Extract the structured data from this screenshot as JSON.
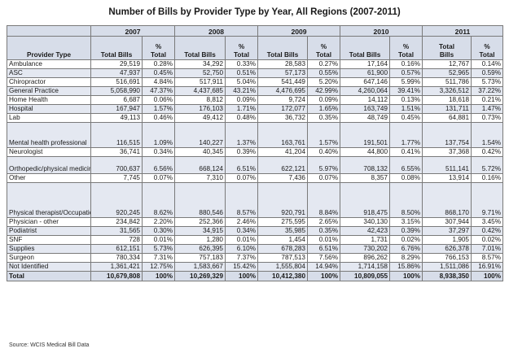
{
  "title": "Number of Bills by Provider Type by Year, All Regions (2007-2011)",
  "years": [
    "2007",
    "2008",
    "2009",
    "2010",
    "2011"
  ],
  "headers": {
    "provider_type": "Provider Type",
    "bills": [
      "Total Bills",
      "Total Bills",
      "Total Bills",
      "Total Bills",
      "Total\nBills"
    ],
    "pct": [
      "%\nTotal",
      "%\nTotal",
      "%\nTotal",
      "%\nTotal",
      "%\nTotal"
    ]
  },
  "rows": [
    {
      "provider": "Ambulance",
      "cells": [
        "29,519",
        "0.28%",
        "34,292",
        "0.33%",
        "28,583",
        "0.27%",
        "17,164",
        "0.16%",
        "12,767",
        "0.14%"
      ]
    },
    {
      "provider": "ASC",
      "cells": [
        "47,937",
        "0.45%",
        "52,750",
        "0.51%",
        "57,173",
        "0.55%",
        "61,900",
        "0.57%",
        "52,965",
        "0.59%"
      ]
    },
    {
      "provider": "Chiropractor",
      "cells": [
        "516,691",
        "4.84%",
        "517,911",
        "5.04%",
        "541,449",
        "5.20%",
        "647,146",
        "5.99%",
        "511,786",
        "5.73%"
      ]
    },
    {
      "provider": "General Practice",
      "cells": [
        "5,058,990",
        "47.37%",
        "4,437,685",
        "43.21%",
        "4,476,695",
        "42.99%",
        "4,260,064",
        "39.41%",
        "3,326,512",
        "37.22%"
      ]
    },
    {
      "provider": "Home Health",
      "cells": [
        "6,687",
        "0.06%",
        "8,812",
        "0.09%",
        "9,724",
        "0.09%",
        "14,112",
        "0.13%",
        "18,618",
        "0.21%"
      ]
    },
    {
      "provider": "Hospital",
      "cells": [
        "167,947",
        "1.57%",
        "176,103",
        "1.71%",
        "172,077",
        "1.65%",
        "163,749",
        "1.51%",
        "131,711",
        "1.47%"
      ]
    },
    {
      "provider": "Lab",
      "cells": [
        "49,113",
        "0.46%",
        "49,412",
        "0.48%",
        "36,732",
        "0.35%",
        "48,749",
        "0.45%",
        "64,881",
        "0.73%"
      ]
    },
    {
      "provider": "Mental health professional",
      "cells": [
        "116,515",
        "1.09%",
        "140,227",
        "1.37%",
        "163,761",
        "1.57%",
        "191,501",
        "1.77%",
        "137,754",
        "1.54%"
      ]
    },
    {
      "provider": "Neurologist",
      "cells": [
        "36,741",
        "0.34%",
        "40,345",
        "0.39%",
        "41,204",
        "0.40%",
        "44,800",
        "0.41%",
        "37,368",
        "0.42%"
      ]
    },
    {
      "provider": "Orthopedic/physical medicine",
      "cells": [
        "700,637",
        "6.56%",
        "668,124",
        "6.51%",
        "622,121",
        "5.97%",
        "708,132",
        "6.55%",
        "511,141",
        "5.72%"
      ]
    },
    {
      "provider": "Other",
      "cells": [
        "7,745",
        "0.07%",
        "7,310",
        "0.07%",
        "7,436",
        "0.07%",
        "8,357",
        "0.08%",
        "13,914",
        "0.16%"
      ]
    },
    {
      "provider": "Physical therapist/Occupational therapist",
      "cells": [
        "920,245",
        "8.62%",
        "880,546",
        "8.57%",
        "920,791",
        "8.84%",
        "918,475",
        "8.50%",
        "868,170",
        "9.71%"
      ]
    },
    {
      "provider": "Physician - other",
      "cells": [
        "234,842",
        "2.20%",
        "252,366",
        "2.46%",
        "275,595",
        "2.65%",
        "340,130",
        "3.15%",
        "307,944",
        "3.45%"
      ]
    },
    {
      "provider": "Podiatrist",
      "cells": [
        "31,565",
        "0.30%",
        "34,915",
        "0.34%",
        "35,985",
        "0.35%",
        "42,423",
        "0.39%",
        "37,297",
        "0.42%"
      ]
    },
    {
      "provider": "SNF",
      "cells": [
        "728",
        "0.01%",
        "1,280",
        "0.01%",
        "1,454",
        "0.01%",
        "1,731",
        "0.02%",
        "1,905",
        "0.02%"
      ]
    },
    {
      "provider": "Supplies",
      "cells": [
        "612,151",
        "5.73%",
        "626,395",
        "6.10%",
        "678,283",
        "6.51%",
        "730,202",
        "6.76%",
        "626,378",
        "7.01%"
      ]
    },
    {
      "provider": "Surgeon",
      "cells": [
        "780,334",
        "7.31%",
        "757,183",
        "7.37%",
        "787,513",
        "7.56%",
        "896,262",
        "8.29%",
        "766,153",
        "8.57%"
      ]
    },
    {
      "provider": "Not Identified",
      "cells": [
        "1,361,421",
        "12.75%",
        "1,583,667",
        "15.42%",
        "1,555,804",
        "14.94%",
        "1,714,158",
        "15.86%",
        "1,511,086",
        "16.91%"
      ]
    }
  ],
  "total": {
    "provider": "Total",
    "cells": [
      "10,679,808",
      "100%",
      "10,269,329",
      "100%",
      "10,412,380",
      "100%",
      "10,809,055",
      "100%",
      "8,938,350",
      "100%"
    ]
  },
  "source": "Source:  WCIS Medical Bill Data"
}
